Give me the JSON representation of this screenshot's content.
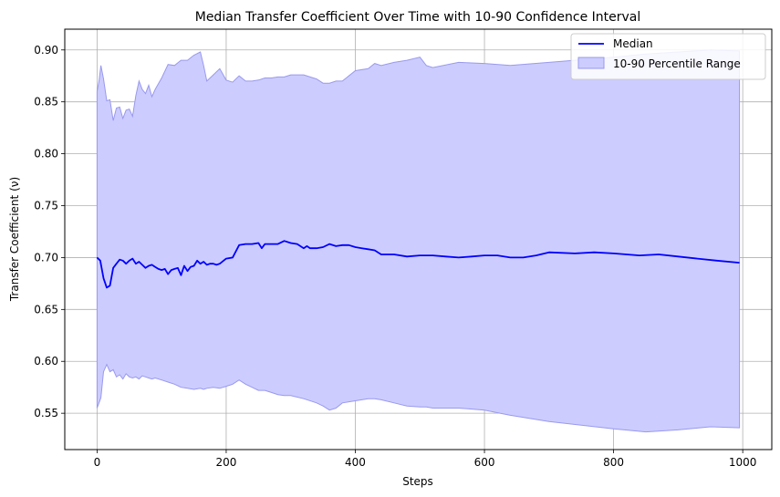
{
  "chart_data": {
    "type": "line",
    "title": "Median Transfer Coefficient Over Time with 10-90 Confidence Interval",
    "xlabel": "Steps",
    "ylabel": "Transfer Coefficient (ν)",
    "xlim": [
      -50,
      1045
    ],
    "ylim": [
      0.515,
      0.92
    ],
    "xticks": [
      0,
      200,
      400,
      600,
      800,
      1000
    ],
    "yticks": [
      0.55,
      0.6,
      0.65,
      0.7,
      0.75,
      0.8,
      0.85,
      0.9
    ],
    "ytick_labels": [
      "0.55",
      "0.60",
      "0.65",
      "0.70",
      "0.75",
      "0.80",
      "0.85",
      "0.90"
    ],
    "grid": true,
    "legend_position": "top-right",
    "colors": {
      "median": "#0000ff",
      "band_fill": "#ccccff",
      "band_edge": "#9999ee",
      "grid": "#b0b0b0"
    },
    "series": [
      {
        "name": "Median",
        "kind": "line",
        "x": [
          0,
          5,
          10,
          15,
          20,
          25,
          30,
          35,
          40,
          45,
          50,
          55,
          60,
          65,
          70,
          75,
          80,
          85,
          90,
          95,
          100,
          105,
          110,
          115,
          120,
          125,
          130,
          135,
          140,
          145,
          150,
          155,
          160,
          165,
          170,
          175,
          180,
          185,
          190,
          200,
          210,
          220,
          230,
          240,
          250,
          255,
          260,
          270,
          280,
          290,
          300,
          310,
          320,
          325,
          330,
          340,
          350,
          360,
          370,
          380,
          390,
          400,
          410,
          420,
          430,
          440,
          460,
          480,
          500,
          520,
          540,
          560,
          580,
          600,
          620,
          640,
          660,
          680,
          700,
          740,
          770,
          800,
          840,
          870,
          900,
          930,
          960,
          995
        ],
        "y": [
          0.7,
          0.697,
          0.68,
          0.671,
          0.673,
          0.69,
          0.694,
          0.698,
          0.697,
          0.694,
          0.697,
          0.699,
          0.694,
          0.696,
          0.693,
          0.69,
          0.692,
          0.693,
          0.691,
          0.689,
          0.688,
          0.689,
          0.684,
          0.688,
          0.689,
          0.69,
          0.683,
          0.692,
          0.687,
          0.691,
          0.692,
          0.697,
          0.694,
          0.696,
          0.693,
          0.694,
          0.694,
          0.693,
          0.694,
          0.699,
          0.7,
          0.712,
          0.713,
          0.713,
          0.714,
          0.709,
          0.713,
          0.713,
          0.713,
          0.716,
          0.714,
          0.713,
          0.709,
          0.711,
          0.709,
          0.709,
          0.71,
          0.713,
          0.711,
          0.712,
          0.712,
          0.71,
          0.709,
          0.708,
          0.707,
          0.703,
          0.703,
          0.701,
          0.702,
          0.702,
          0.701,
          0.7,
          0.701,
          0.702,
          0.702,
          0.7,
          0.7,
          0.702,
          0.705,
          0.704,
          0.705,
          0.704,
          0.702,
          0.703,
          0.701,
          0.699,
          0.697,
          0.695
        ]
      },
      {
        "name": "10-90 Percentile Range",
        "kind": "band",
        "x": [
          0,
          3,
          6,
          10,
          15,
          20,
          25,
          30,
          35,
          40,
          45,
          50,
          55,
          60,
          65,
          70,
          75,
          80,
          85,
          90,
          100,
          110,
          120,
          130,
          140,
          150,
          160,
          165,
          170,
          180,
          190,
          200,
          210,
          220,
          230,
          240,
          250,
          260,
          270,
          280,
          290,
          300,
          320,
          340,
          350,
          360,
          370,
          380,
          400,
          420,
          430,
          440,
          460,
          480,
          500,
          510,
          520,
          560,
          600,
          640,
          700,
          800,
          850,
          900,
          950,
          995
        ],
        "upper": [
          0.86,
          0.87,
          0.885,
          0.872,
          0.851,
          0.852,
          0.832,
          0.844,
          0.845,
          0.834,
          0.842,
          0.843,
          0.836,
          0.856,
          0.87,
          0.862,
          0.858,
          0.866,
          0.855,
          0.862,
          0.873,
          0.886,
          0.885,
          0.89,
          0.89,
          0.895,
          0.898,
          0.885,
          0.87,
          0.876,
          0.882,
          0.871,
          0.869,
          0.875,
          0.87,
          0.87,
          0.871,
          0.873,
          0.873,
          0.874,
          0.874,
          0.876,
          0.876,
          0.872,
          0.868,
          0.868,
          0.87,
          0.87,
          0.88,
          0.882,
          0.887,
          0.885,
          0.888,
          0.89,
          0.893,
          0.885,
          0.883,
          0.888,
          0.887,
          0.885,
          0.888,
          0.893,
          0.896,
          0.898,
          0.9,
          0.899
        ],
        "lower": [
          0.555,
          0.56,
          0.565,
          0.59,
          0.597,
          0.59,
          0.592,
          0.585,
          0.587,
          0.583,
          0.588,
          0.585,
          0.584,
          0.585,
          0.583,
          0.586,
          0.585,
          0.584,
          0.583,
          0.584,
          0.582,
          0.58,
          0.578,
          0.575,
          0.574,
          0.573,
          0.574,
          0.573,
          0.574,
          0.575,
          0.574,
          0.576,
          0.578,
          0.582,
          0.578,
          0.575,
          0.572,
          0.572,
          0.57,
          0.568,
          0.567,
          0.567,
          0.564,
          0.56,
          0.557,
          0.553,
          0.555,
          0.56,
          0.562,
          0.564,
          0.564,
          0.563,
          0.56,
          0.557,
          0.556,
          0.556,
          0.555,
          0.555,
          0.553,
          0.548,
          0.542,
          0.535,
          0.532,
          0.534,
          0.537,
          0.536
        ]
      }
    ]
  }
}
